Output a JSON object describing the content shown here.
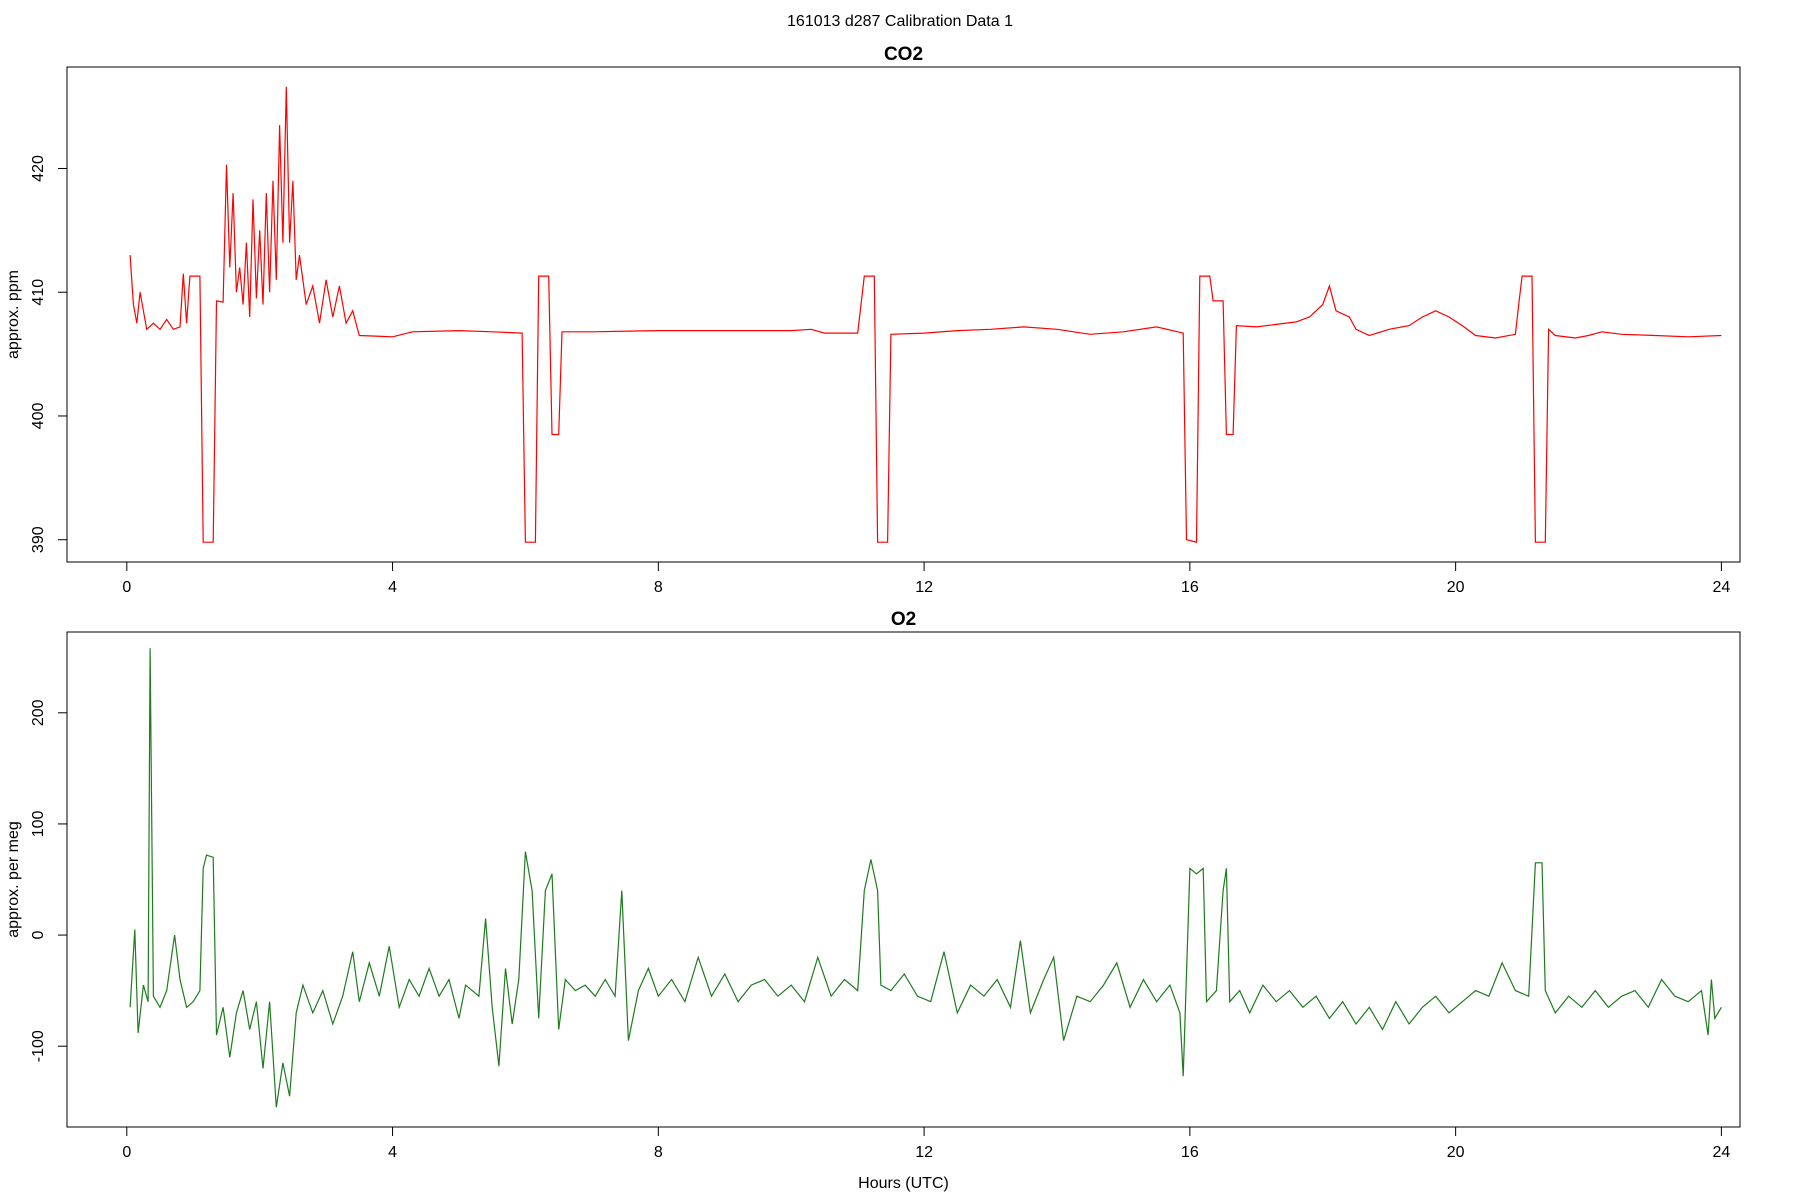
{
  "title": "161013   d287   Calibration Data 1",
  "chart_data": [
    {
      "type": "line",
      "title": "CO2",
      "ylabel": "approx. ppm",
      "xlim": [
        -0.9,
        24.28
      ],
      "ylim": [
        388.2,
        428.2
      ],
      "xticks": [
        0,
        4,
        8,
        12,
        16,
        20,
        24
      ],
      "yticks": [
        390,
        400,
        410,
        420
      ],
      "color": "#ff0000",
      "x": [
        0.05,
        0.1,
        0.15,
        0.2,
        0.3,
        0.4,
        0.5,
        0.6,
        0.7,
        0.8,
        0.85,
        0.9,
        0.95,
        1.1,
        1.15,
        1.3,
        1.35,
        1.45,
        1.5,
        1.55,
        1.6,
        1.65,
        1.7,
        1.75,
        1.8,
        1.85,
        1.9,
        1.95,
        2.0,
        2.05,
        2.1,
        2.15,
        2.2,
        2.25,
        2.3,
        2.35,
        2.4,
        2.45,
        2.5,
        2.55,
        2.6,
        2.7,
        2.8,
        2.9,
        3.0,
        3.1,
        3.2,
        3.3,
        3.4,
        3.5,
        4.0,
        4.3,
        5.0,
        5.5,
        5.95,
        6.0,
        6.15,
        6.2,
        6.35,
        6.4,
        6.5,
        6.55,
        7.0,
        8,
        9,
        10,
        10.3,
        10.5,
        11.0,
        11.1,
        11.25,
        11.3,
        11.45,
        11.5,
        12,
        12.5,
        13,
        13.5,
        14,
        14.5,
        15,
        15.5,
        15.9,
        15.95,
        16.1,
        16.15,
        16.3,
        16.35,
        16.5,
        16.55,
        16.65,
        16.7,
        17,
        17.3,
        17.6,
        17.8,
        18.0,
        18.1,
        18.2,
        18.4,
        18.5,
        18.7,
        19,
        19.3,
        19.5,
        19.7,
        19.9,
        20.1,
        20.3,
        20.6,
        20.9,
        20.95,
        21.0,
        21.15,
        21.2,
        21.35,
        21.4,
        21.5,
        21.8,
        22,
        22.2,
        22.5,
        23,
        23.5,
        24
      ],
      "values": [
        413,
        409,
        407.5,
        410,
        407,
        407.5,
        407,
        407.8,
        407,
        407.2,
        411.5,
        407.5,
        411.3,
        411.3,
        389.8,
        389.8,
        409.3,
        409.2,
        420.3,
        412,
        418,
        410,
        412,
        409,
        414,
        408,
        417.5,
        409.5,
        415,
        409,
        418,
        410,
        419,
        411,
        423.5,
        414,
        426.6,
        414,
        419,
        411,
        413,
        409,
        410.5,
        407.5,
        411,
        408,
        410.5,
        407.5,
        408.5,
        406.5,
        406.4,
        406.8,
        406.9,
        406.8,
        406.7,
        389.8,
        389.8,
        411.3,
        411.3,
        398.5,
        398.5,
        406.8,
        406.8,
        406.9,
        406.9,
        406.9,
        407,
        406.7,
        406.7,
        411.3,
        411.3,
        389.8,
        389.8,
        406.6,
        406.7,
        406.9,
        407,
        407.2,
        407,
        406.6,
        406.8,
        407.2,
        406.7,
        390,
        389.8,
        411.3,
        411.3,
        409.3,
        409.3,
        398.5,
        398.5,
        407.3,
        407.2,
        407.4,
        407.6,
        408,
        409,
        410.5,
        408.5,
        408,
        407,
        406.5,
        407,
        407.3,
        408,
        408.5,
        408,
        407.3,
        406.5,
        406.3,
        406.6,
        409,
        411.3,
        411.3,
        389.8,
        389.8,
        407,
        406.5,
        406.3,
        406.5,
        406.8,
        406.6,
        406.5,
        406.4,
        406.5
      ]
    },
    {
      "type": "line",
      "title": "O2",
      "ylabel": "approx. per meg",
      "xlabel": "Hours (UTC)",
      "xlim": [
        -0.9,
        24.28
      ],
      "ylim": [
        -172.7,
        272.7
      ],
      "xticks": [
        0,
        4,
        8,
        12,
        16,
        20,
        24
      ],
      "yticks": [
        -100,
        0,
        100,
        200
      ],
      "color": "#1e7b1e",
      "x": [
        0.05,
        0.12,
        0.17,
        0.25,
        0.32,
        0.35,
        0.4,
        0.5,
        0.6,
        0.72,
        0.8,
        0.9,
        1.0,
        1.1,
        1.15,
        1.2,
        1.3,
        1.35,
        1.45,
        1.55,
        1.65,
        1.75,
        1.85,
        1.95,
        2.05,
        2.15,
        2.25,
        2.35,
        2.45,
        2.55,
        2.65,
        2.8,
        2.95,
        3.1,
        3.25,
        3.4,
        3.5,
        3.65,
        3.8,
        3.95,
        4.1,
        4.25,
        4.4,
        4.55,
        4.7,
        4.85,
        5.0,
        5.1,
        5.3,
        5.4,
        5.5,
        5.6,
        5.7,
        5.8,
        5.9,
        6.0,
        6.1,
        6.2,
        6.3,
        6.4,
        6.5,
        6.6,
        6.75,
        6.9,
        7.05,
        7.2,
        7.35,
        7.45,
        7.55,
        7.7,
        7.85,
        8.0,
        8.2,
        8.4,
        8.6,
        8.8,
        9.0,
        9.2,
        9.4,
        9.6,
        9.8,
        10.0,
        10.2,
        10.4,
        10.6,
        10.8,
        11.0,
        11.1,
        11.2,
        11.3,
        11.35,
        11.5,
        11.7,
        11.9,
        12.1,
        12.3,
        12.5,
        12.7,
        12.9,
        13.1,
        13.3,
        13.45,
        13.6,
        13.8,
        13.95,
        14.1,
        14.3,
        14.5,
        14.7,
        14.9,
        15.1,
        15.3,
        15.5,
        15.7,
        15.85,
        15.9,
        16.0,
        16.1,
        16.2,
        16.25,
        16.4,
        16.5,
        16.55,
        16.6,
        16.75,
        16.9,
        17.1,
        17.3,
        17.5,
        17.7,
        17.9,
        18.1,
        18.3,
        18.5,
        18.7,
        18.9,
        19.1,
        19.3,
        19.5,
        19.7,
        19.9,
        20.1,
        20.3,
        20.5,
        20.7,
        20.9,
        21.1,
        21.2,
        21.3,
        21.35,
        21.5,
        21.7,
        21.9,
        22.1,
        22.3,
        22.5,
        22.7,
        22.9,
        23.1,
        23.3,
        23.5,
        23.7,
        23.8,
        23.85,
        23.9,
        24.0
      ],
      "values": [
        -65,
        5,
        -88,
        -45,
        -60,
        258,
        -55,
        -65,
        -50,
        0,
        -40,
        -65,
        -60,
        -50,
        60,
        72,
        70,
        -90,
        -65,
        -110,
        -70,
        -50,
        -85,
        -60,
        -120,
        -60,
        -155,
        -115,
        -145,
        -70,
        -45,
        -70,
        -50,
        -80,
        -55,
        -15,
        -60,
        -25,
        -55,
        -10,
        -65,
        -40,
        -55,
        -30,
        -55,
        -40,
        -75,
        -45,
        -55,
        15,
        -65,
        -118,
        -30,
        -80,
        -40,
        75,
        40,
        -75,
        40,
        55,
        -85,
        -40,
        -50,
        -45,
        -55,
        -40,
        -55,
        40,
        -95,
        -50,
        -30,
        -55,
        -40,
        -60,
        -20,
        -55,
        -35,
        -60,
        -45,
        -40,
        -55,
        -45,
        -60,
        -20,
        -55,
        -40,
        -50,
        40,
        68,
        40,
        -45,
        -50,
        -35,
        -55,
        -60,
        -15,
        -70,
        -45,
        -55,
        -40,
        -65,
        -5,
        -70,
        -40,
        -20,
        -95,
        -55,
        -60,
        -45,
        -25,
        -65,
        -40,
        -60,
        -45,
        -70,
        -127,
        60,
        55,
        60,
        -60,
        -50,
        40,
        60,
        -60,
        -50,
        -70,
        -45,
        -60,
        -50,
        -65,
        -55,
        -75,
        -60,
        -80,
        -65,
        -85,
        -60,
        -80,
        -65,
        -55,
        -70,
        -60,
        -50,
        -55,
        -25,
        -50,
        -55,
        65,
        65,
        -50,
        -70,
        -55,
        -65,
        -50,
        -65,
        -55,
        -50,
        -65,
        -40,
        -55,
        -60,
        -50,
        -90,
        -40,
        -75,
        -65
      ]
    }
  ]
}
